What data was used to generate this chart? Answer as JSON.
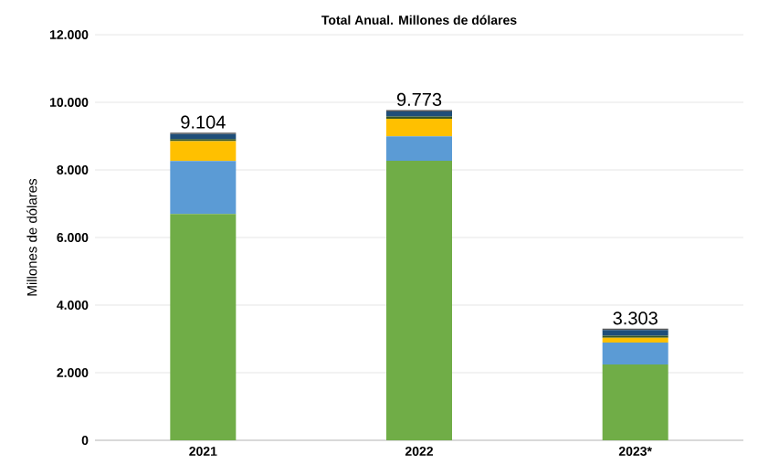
{
  "chart_data": {
    "type": "bar",
    "title": "Total Anual. Millones de dólares",
    "ylabel": "Millones de dólares",
    "categories": [
      "2021",
      "2022",
      "2023*"
    ],
    "stacked": true,
    "series": [
      {
        "color": "#70ad47",
        "values": [
          6694,
          8273,
          2243
        ]
      },
      {
        "color": "#5b9bd5",
        "values": [
          1570,
          720,
          650
        ]
      },
      {
        "color": "#ffc000",
        "values": [
          590,
          520,
          140
        ]
      },
      {
        "color": "#375623",
        "values": [
          60,
          70,
          60
        ]
      },
      {
        "color": "#1f4e79",
        "values": [
          150,
          150,
          170
        ]
      },
      {
        "color": "#595959",
        "values": [
          40,
          40,
          40
        ]
      }
    ],
    "totals": [
      "9.104",
      "9.773",
      "3.303"
    ],
    "ylim": [
      0,
      12000
    ],
    "yticks": [
      {
        "value": 0,
        "label": "0"
      },
      {
        "value": 2000,
        "label": "2.000"
      },
      {
        "value": 4000,
        "label": "4.000"
      },
      {
        "value": 6000,
        "label": "6.000"
      },
      {
        "value": 8000,
        "label": "8.000"
      },
      {
        "value": 10000,
        "label": "10.000"
      },
      {
        "value": 12000,
        "label": "12.000"
      }
    ],
    "grid": "y"
  }
}
